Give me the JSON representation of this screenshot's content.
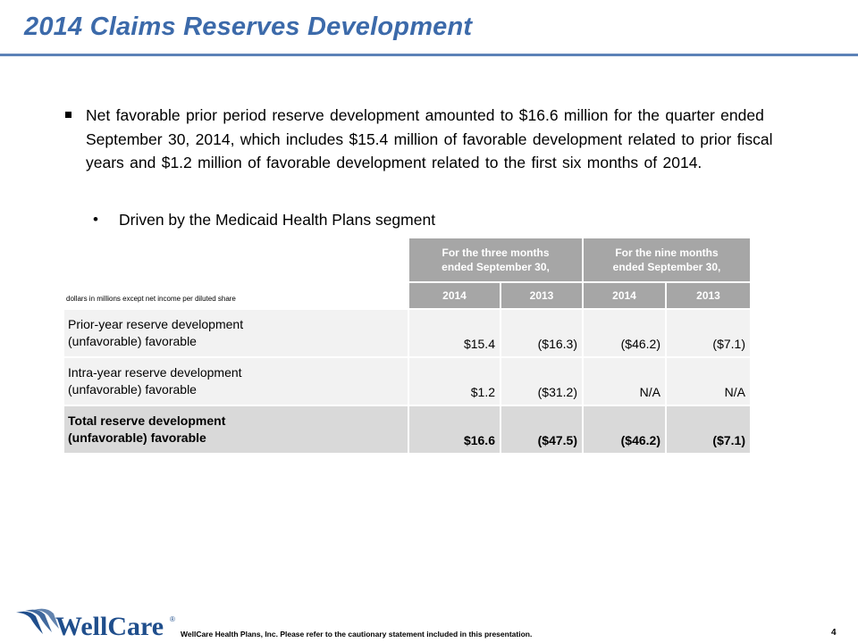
{
  "slide": {
    "title": "2014 Claims Reserves Development",
    "bullet_main": "Net favorable prior period reserve development amounted to $16.6 million for the quarter ended September 30, 2014, which includes $15.4 million of favorable development related to prior fiscal years and $1.2 million of favorable development related to the first six months of 2014.",
    "bullet_sub": "Driven by the Medicaid Health Plans segment"
  },
  "table": {
    "unit_note": "dollars in millions except net income per diluted share",
    "group_headers": [
      {
        "line1": "For the three months",
        "line2": "ended September 30,"
      },
      {
        "line1": "For the nine months",
        "line2": "ended September 30,"
      }
    ],
    "years": [
      "2014",
      "2013",
      "2014",
      "2013"
    ],
    "rows": [
      {
        "label1": "Prior-year reserve development",
        "label2": "(unfavorable) favorable",
        "values": [
          "$15.4",
          "($16.3)",
          "($46.2)",
          "($7.1)"
        ]
      },
      {
        "label1": "Intra-year reserve development",
        "label2": "(unfavorable) favorable",
        "values": [
          "$1.2",
          "($31.2)",
          "N/A",
          "N/A"
        ]
      },
      {
        "label1": "Total reserve development",
        "label2": "(unfavorable) favorable",
        "values": [
          "$16.6",
          "($47.5)",
          "($46.2)",
          "($7.1)"
        ]
      }
    ]
  },
  "footer": {
    "logo_text": "WellCare",
    "logo_mark": "®",
    "disclaimer": "WellCare Health Plans, Inc.  Please refer to the cautionary statement included in this presentation.",
    "page_number": "4"
  },
  "colors": {
    "title": "#3c6aaa",
    "rule": "#5c82b8",
    "header_fill": "#a6a6a6",
    "row_fill": "#f2f2f2",
    "total_fill": "#d9d9d9",
    "logo": "#1f4e8c"
  }
}
